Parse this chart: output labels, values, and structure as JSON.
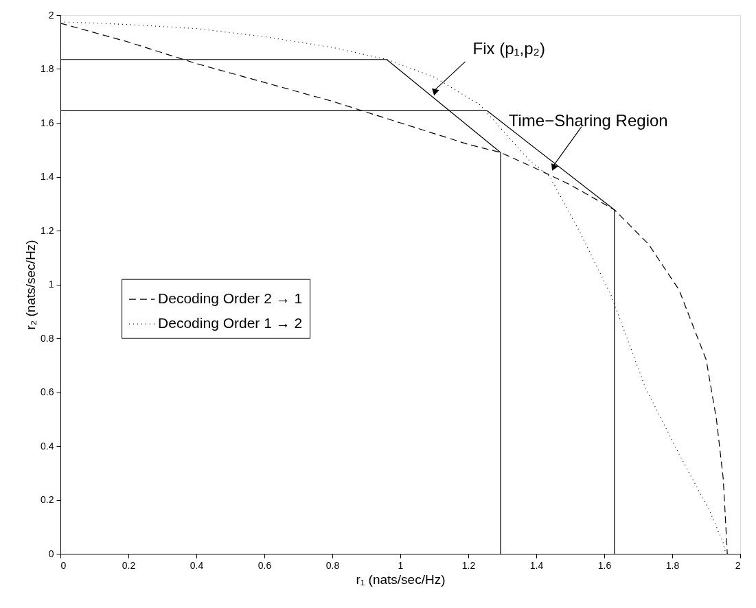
{
  "chart_data": {
    "type": "line",
    "xlabel": "r₁ (nats/sec/Hz)",
    "ylabel": "r₂ (nats/sec/Hz)",
    "xlim": [
      0,
      2
    ],
    "ylim": [
      0,
      2
    ],
    "xticks": [
      0,
      0.2,
      0.4,
      0.6,
      0.8,
      1,
      1.2,
      1.4,
      1.6,
      1.8,
      2
    ],
    "yticks": [
      0,
      0.2,
      0.4,
      0.6,
      0.8,
      1,
      1.2,
      1.4,
      1.6,
      1.8,
      2
    ],
    "grid": false,
    "legend": "left",
    "marker": "none",
    "series": [
      {
        "name": "Decoding Order 2 → 1",
        "color": "#000000",
        "line_style": "dashed",
        "x": [
          0,
          0.2,
          0.4,
          0.6,
          0.8,
          1.0,
          1.2,
          1.295,
          1.4,
          1.5,
          1.63,
          1.73,
          1.82,
          1.9,
          1.93,
          1.95,
          1.96,
          1.962
        ],
        "values": [
          1.97,
          1.9,
          1.82,
          1.75,
          1.68,
          1.6,
          1.52,
          1.49,
          1.43,
          1.37,
          1.277,
          1.15,
          0.98,
          0.72,
          0.5,
          0.28,
          0.05,
          0
        ]
      },
      {
        "name": "Decoding Order 1 → 2",
        "color": "#000000",
        "line_style": "dotted",
        "x": [
          0,
          0.2,
          0.4,
          0.6,
          0.8,
          0.96,
          1.1,
          1.235,
          1.38,
          1.44,
          1.53,
          1.62,
          1.72,
          1.82,
          1.91,
          1.95,
          1.957
        ],
        "values": [
          1.975,
          1.965,
          1.95,
          1.92,
          1.88,
          1.835,
          1.77,
          1.666,
          1.46,
          1.4,
          1.19,
          0.96,
          0.62,
          0.37,
          0.16,
          0.04,
          0
        ]
      },
      {
        "color": "#000000",
        "line_style": "solid",
        "x": [
          0,
          0.96,
          1.295,
          1.295
        ],
        "values": [
          1.835,
          1.835,
          1.49,
          0
        ]
      },
      {
        "color": "#000000",
        "line_style": "solid",
        "x": [
          0,
          1.255,
          1.63,
          1.63
        ],
        "values": [
          1.645,
          1.645,
          1.277,
          0
        ]
      }
    ],
    "annotations": [
      {
        "text": "Fix  (p₁,p₂)",
        "x": 1.1,
        "y": 1.72
      },
      {
        "text": "Time−Sharing Region",
        "x": 1.45,
        "y": 1.44
      }
    ]
  }
}
